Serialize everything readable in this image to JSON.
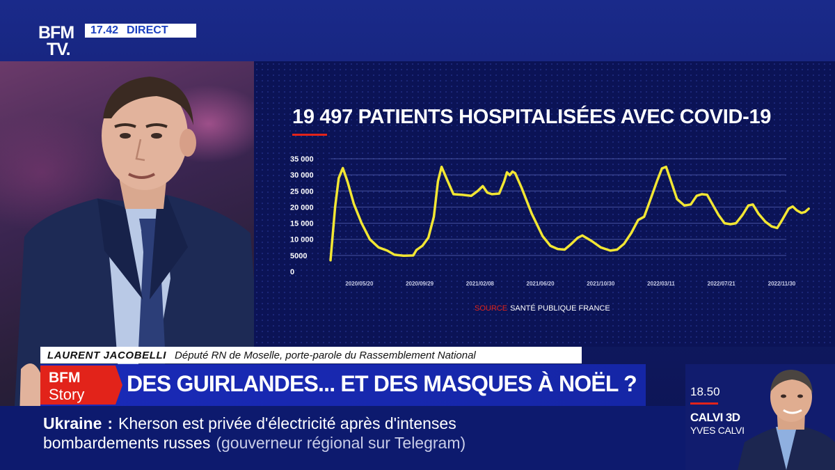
{
  "channel": {
    "logo_line1": "BFM",
    "logo_line2": "TV.",
    "time": "17.42",
    "live_label": "DIRECT"
  },
  "chart_data": {
    "type": "line",
    "title": "19 497 PATIENTS HOSPITALISÉES AVEC COVID-19",
    "source_label": "SOURCE",
    "source_text": "SANTÉ PUBLIQUE FRANCE",
    "xlabel": "",
    "ylabel": "",
    "ylim": [
      0,
      35000
    ],
    "yticks": [
      "35 000",
      "30 000",
      "25 000",
      "20 000",
      "15 000",
      "10 000",
      "5000",
      "0"
    ],
    "ytick_values": [
      35000,
      30000,
      25000,
      20000,
      15000,
      10000,
      5000,
      0
    ],
    "xticks": [
      "2020/05/20",
      "2020/09/29",
      "2021/02/08",
      "2021/06/20",
      "2021/10/30",
      "2022/03/11",
      "2022/07/21",
      "2022/11/30"
    ],
    "x_range": [
      "2020/03/18",
      "2022/12/10"
    ],
    "series": [
      {
        "color": "#f2e633",
        "points": [
          [
            "2020/03/18",
            3500
          ],
          [
            "2020/03/28",
            20000
          ],
          [
            "2020/04/05",
            29000
          ],
          [
            "2020/04/14",
            32100
          ],
          [
            "2020/04/24",
            28000
          ],
          [
            "2020/05/08",
            21000
          ],
          [
            "2020/05/25",
            15000
          ],
          [
            "2020/06/12",
            10000
          ],
          [
            "2020/07/01",
            7500
          ],
          [
            "2020/07/20",
            6500
          ],
          [
            "2020/08/05",
            5200
          ],
          [
            "2020/08/25",
            4900
          ],
          [
            "2020/09/15",
            5000
          ],
          [
            "2020/09/22",
            6700
          ],
          [
            "2020/10/05",
            8000
          ],
          [
            "2020/10/18",
            10500
          ],
          [
            "2020/10/30",
            17000
          ],
          [
            "2020/11/08",
            28000
          ],
          [
            "2020/11/16",
            32500
          ],
          [
            "2020/11/28",
            28500
          ],
          [
            "2020/12/12",
            24000
          ],
          [
            "2020/12/31",
            23800
          ],
          [
            "2021/01/20",
            23500
          ],
          [
            "2021/02/03",
            25000
          ],
          [
            "2021/02/14",
            26500
          ],
          [
            "2021/02/24",
            24500
          ],
          [
            "2021/03/06",
            24000
          ],
          [
            "2021/03/22",
            24200
          ],
          [
            "2021/04/02",
            28000
          ],
          [
            "2021/04/08",
            30800
          ],
          [
            "2021/04/14",
            29900
          ],
          [
            "2021/04/20",
            31000
          ],
          [
            "2021/04/26",
            30500
          ],
          [
            "2021/05/10",
            26000
          ],
          [
            "2021/06/01",
            18000
          ],
          [
            "2021/06/25",
            11000
          ],
          [
            "2021/07/12",
            8000
          ],
          [
            "2021/07/28",
            7000
          ],
          [
            "2021/08/12",
            6800
          ],
          [
            "2021/08/26",
            8500
          ],
          [
            "2021/09/10",
            10500
          ],
          [
            "2021/09/20",
            11200
          ],
          [
            "2021/10/10",
            9500
          ],
          [
            "2021/10/30",
            7500
          ],
          [
            "2021/11/20",
            6500
          ],
          [
            "2021/12/05",
            6800
          ],
          [
            "2021/12/20",
            8600
          ],
          [
            "2022/01/05",
            12000
          ],
          [
            "2022/01/20",
            16000
          ],
          [
            "2022/02/02",
            17000
          ],
          [
            "2022/02/15",
            22000
          ],
          [
            "2022/03/02",
            28000
          ],
          [
            "2022/03/13",
            32000
          ],
          [
            "2022/03/22",
            32500
          ],
          [
            "2022/04/02",
            28000
          ],
          [
            "2022/04/15",
            22500
          ],
          [
            "2022/05/01",
            20500
          ],
          [
            "2022/05/15",
            20800
          ],
          [
            "2022/05/28",
            23500
          ],
          [
            "2022/06/08",
            24000
          ],
          [
            "2022/06/20",
            23800
          ],
          [
            "2022/07/01",
            21000
          ],
          [
            "2022/07/15",
            17500
          ],
          [
            "2022/07/28",
            15000
          ],
          [
            "2022/08/10",
            14700
          ],
          [
            "2022/08/22",
            15000
          ],
          [
            "2022/09/05",
            17500
          ],
          [
            "2022/09/18",
            20500
          ],
          [
            "2022/09/28",
            20800
          ],
          [
            "2022/10/10",
            18000
          ],
          [
            "2022/10/25",
            15500
          ],
          [
            "2022/11/08",
            14000
          ],
          [
            "2022/11/20",
            13500
          ],
          [
            "2022/12/01",
            16000
          ],
          [
            "2022/12/15",
            19500
          ],
          [
            "2022/12/24",
            20200
          ],
          [
            "2023/01/02",
            19000
          ],
          [
            "2023/01/12",
            18200
          ],
          [
            "2023/01/20",
            18500
          ],
          [
            "2023/01/28",
            19500
          ]
        ]
      }
    ]
  },
  "lower_third": {
    "guest_name": "LAURENT JACOBELLI",
    "guest_role": "Député RN de Moselle, porte-parole du Rassemblement National",
    "story_badge_line1": "BFM",
    "story_badge_line2": "Story",
    "headline": "DES GUIRLANDES... ET DES MASQUES À NOËL ?"
  },
  "ticker": {
    "topic": "Ukraine",
    "separator": ":",
    "line1_text": "Kherson est privée d'électricité après d'intenses",
    "line2_text": "bombardements russes",
    "line2_source": "(gouverneur régional sur Telegram)"
  },
  "next_show": {
    "time": "18.50",
    "title": "CALVI 3D",
    "host": "YVES CALVI"
  },
  "colors": {
    "accent_red": "#e2231a",
    "line_yellow": "#f2e633",
    "brand_blue": "#1a2ab8"
  }
}
